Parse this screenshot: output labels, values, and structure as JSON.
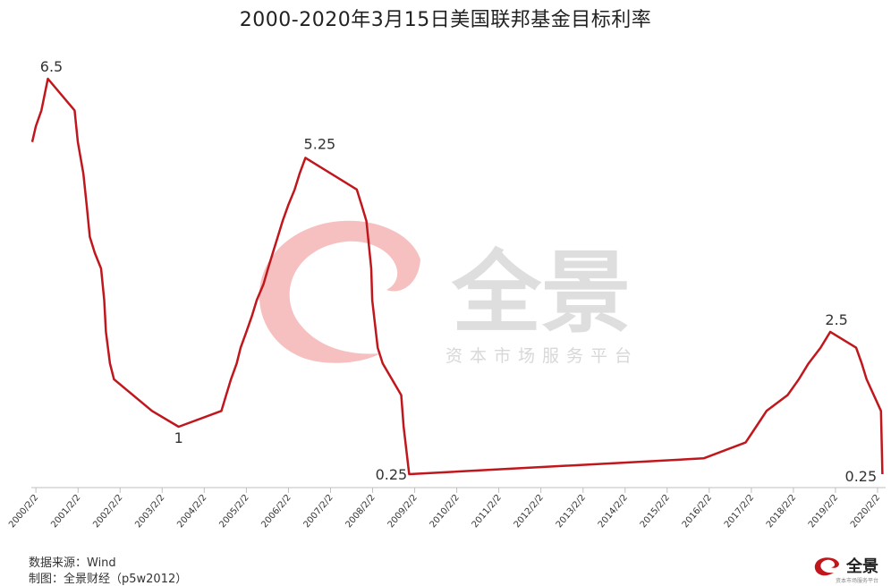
{
  "chart_data": {
    "type": "line",
    "title": "2000-2020年3月15日美国联邦基金目标利率",
    "xlabel": "",
    "ylabel": "",
    "ylim": [
      0,
      7
    ],
    "grid": false,
    "legend": "none",
    "x_tick_labels": [
      "2000/2/2",
      "2001/2/2",
      "2002/2/2",
      "2003/2/2",
      "2004/2/2",
      "2005/2/2",
      "2006/2/2",
      "2007/2/2",
      "2008/2/2",
      "2009/2/2",
      "2010/2/2",
      "2011/2/2",
      "2012/2/2",
      "2013/2/2",
      "2014/2/2",
      "2015/2/2",
      "2016/2/2",
      "2017/2/2",
      "2018/2/2",
      "2019/2/2",
      "2020/2/2"
    ],
    "x_range": [
      "2000-01-01",
      "2020-03-20"
    ],
    "series": [
      {
        "color": "#c0171d",
        "points": [
          [
            "2000-01-01",
            5.5
          ],
          [
            "2000-02-02",
            5.75
          ],
          [
            "2000-03-21",
            6.0
          ],
          [
            "2000-05-16",
            6.5
          ],
          [
            "2001-01-03",
            6.0
          ],
          [
            "2001-01-31",
            5.5
          ],
          [
            "2001-03-20",
            5.0
          ],
          [
            "2001-04-18",
            4.5
          ],
          [
            "2001-05-15",
            4.0
          ],
          [
            "2001-06-27",
            3.75
          ],
          [
            "2001-08-21",
            3.5
          ],
          [
            "2001-09-17",
            3.0
          ],
          [
            "2001-10-02",
            2.5
          ],
          [
            "2001-11-06",
            2.0
          ],
          [
            "2001-12-11",
            1.75
          ],
          [
            "2002-11-06",
            1.25
          ],
          [
            "2003-06-25",
            1.0
          ],
          [
            "2004-06-30",
            1.25
          ],
          [
            "2004-08-10",
            1.5
          ],
          [
            "2004-09-21",
            1.75
          ],
          [
            "2004-11-10",
            2.0
          ],
          [
            "2004-12-14",
            2.25
          ],
          [
            "2005-02-02",
            2.5
          ],
          [
            "2005-03-22",
            2.75
          ],
          [
            "2005-05-03",
            3.0
          ],
          [
            "2005-06-30",
            3.25
          ],
          [
            "2005-08-09",
            3.5
          ],
          [
            "2005-09-20",
            3.75
          ],
          [
            "2005-11-01",
            4.0
          ],
          [
            "2005-12-13",
            4.25
          ],
          [
            "2006-01-31",
            4.5
          ],
          [
            "2006-03-28",
            4.75
          ],
          [
            "2006-05-10",
            5.0
          ],
          [
            "2006-06-29",
            5.25
          ],
          [
            "2007-09-18",
            4.75
          ],
          [
            "2007-10-31",
            4.5
          ],
          [
            "2007-12-11",
            4.25
          ],
          [
            "2008-01-22",
            3.5
          ],
          [
            "2008-01-30",
            3.0
          ],
          [
            "2008-03-18",
            2.25
          ],
          [
            "2008-04-30",
            2.0
          ],
          [
            "2008-10-08",
            1.5
          ],
          [
            "2008-10-29",
            1.0
          ],
          [
            "2008-12-16",
            0.25
          ],
          [
            "2015-12-16",
            0.5
          ],
          [
            "2016-12-14",
            0.75
          ],
          [
            "2017-03-15",
            1.0
          ],
          [
            "2017-06-14",
            1.25
          ],
          [
            "2017-12-13",
            1.5
          ],
          [
            "2018-03-21",
            1.75
          ],
          [
            "2018-06-13",
            2.0
          ],
          [
            "2018-09-26",
            2.25
          ],
          [
            "2018-12-19",
            2.5
          ],
          [
            "2019-07-31",
            2.25
          ],
          [
            "2019-09-18",
            2.0
          ],
          [
            "2019-10-30",
            1.75
          ],
          [
            "2020-03-03",
            1.25
          ],
          [
            "2020-03-15",
            0.25
          ]
        ]
      }
    ],
    "annotations": [
      {
        "text": "6.5",
        "x": "2000-05-16",
        "y": 6.5
      },
      {
        "text": "1",
        "x": "2003-06-25",
        "y": 1.0
      },
      {
        "text": "5.25",
        "x": "2006-06-29",
        "y": 5.25
      },
      {
        "text": "0.25",
        "x": "2008-12-16",
        "y": 0.25
      },
      {
        "text": "2.5",
        "x": "2018-12-19",
        "y": 2.5
      },
      {
        "text": "0.25",
        "x": "2020-03-15",
        "y": 0.25
      }
    ]
  },
  "watermark": {
    "text": "全景",
    "subtitle": "资本市场服务平台",
    "color": "#f3b6b6"
  },
  "footer": {
    "source": "数据来源：Wind",
    "credit": "制图：全景财经（p5w2012）"
  },
  "brand": {
    "name": "全景",
    "subtitle": "资本市场服务平台",
    "color": "#c0171d"
  }
}
